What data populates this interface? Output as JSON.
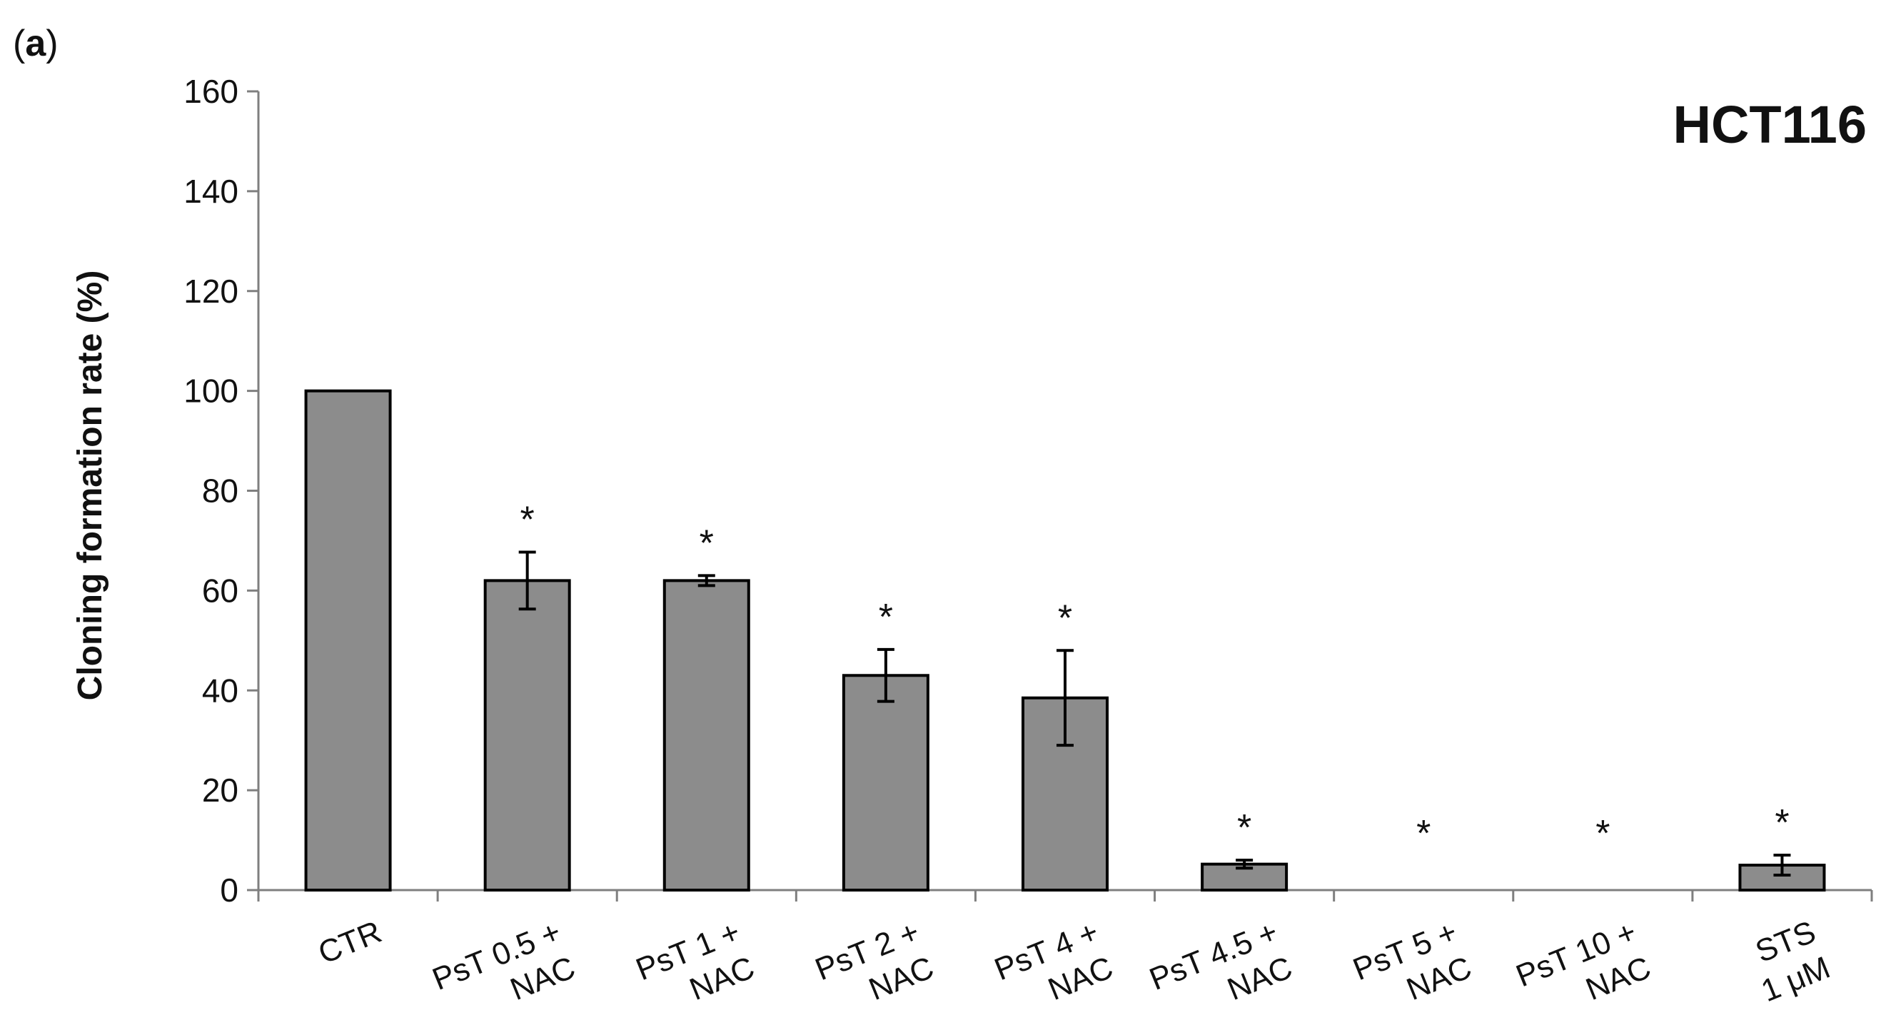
{
  "chart_data": {
    "type": "bar",
    "panel_label": "(a)",
    "panel_label_letter": "a",
    "title": "HCT116",
    "ylabel": "Cloning formation rate (%)",
    "xlabel": "",
    "ylim": [
      0,
      160
    ],
    "yticks": [
      "0",
      "20",
      "40",
      "60",
      "80",
      "100",
      "120",
      "140",
      "160"
    ],
    "categories": [
      [
        "CTR"
      ],
      [
        "PsT 0.5 +",
        "NAC"
      ],
      [
        "PsT 1 +",
        "NAC"
      ],
      [
        "PsT 2 +",
        "NAC"
      ],
      [
        "PsT 4 +",
        "NAC"
      ],
      [
        "PsT 4.5 +",
        "NAC"
      ],
      [
        "PsT 5 +",
        "NAC"
      ],
      [
        "PsT 10 +",
        "NAC"
      ],
      [
        "STS",
        "1 μM"
      ]
    ],
    "values": [
      100,
      62,
      62,
      43,
      38.5,
      5.2,
      0,
      0,
      5
    ],
    "errors": [
      0,
      5.7,
      1,
      5.2,
      9.5,
      0.8,
      0,
      0,
      2
    ],
    "significance": [
      "",
      "*",
      "*",
      "*",
      "*",
      "*",
      "*",
      "*",
      "*"
    ],
    "bar_color": "#8c8c8c",
    "grid": false,
    "legend": "none"
  }
}
